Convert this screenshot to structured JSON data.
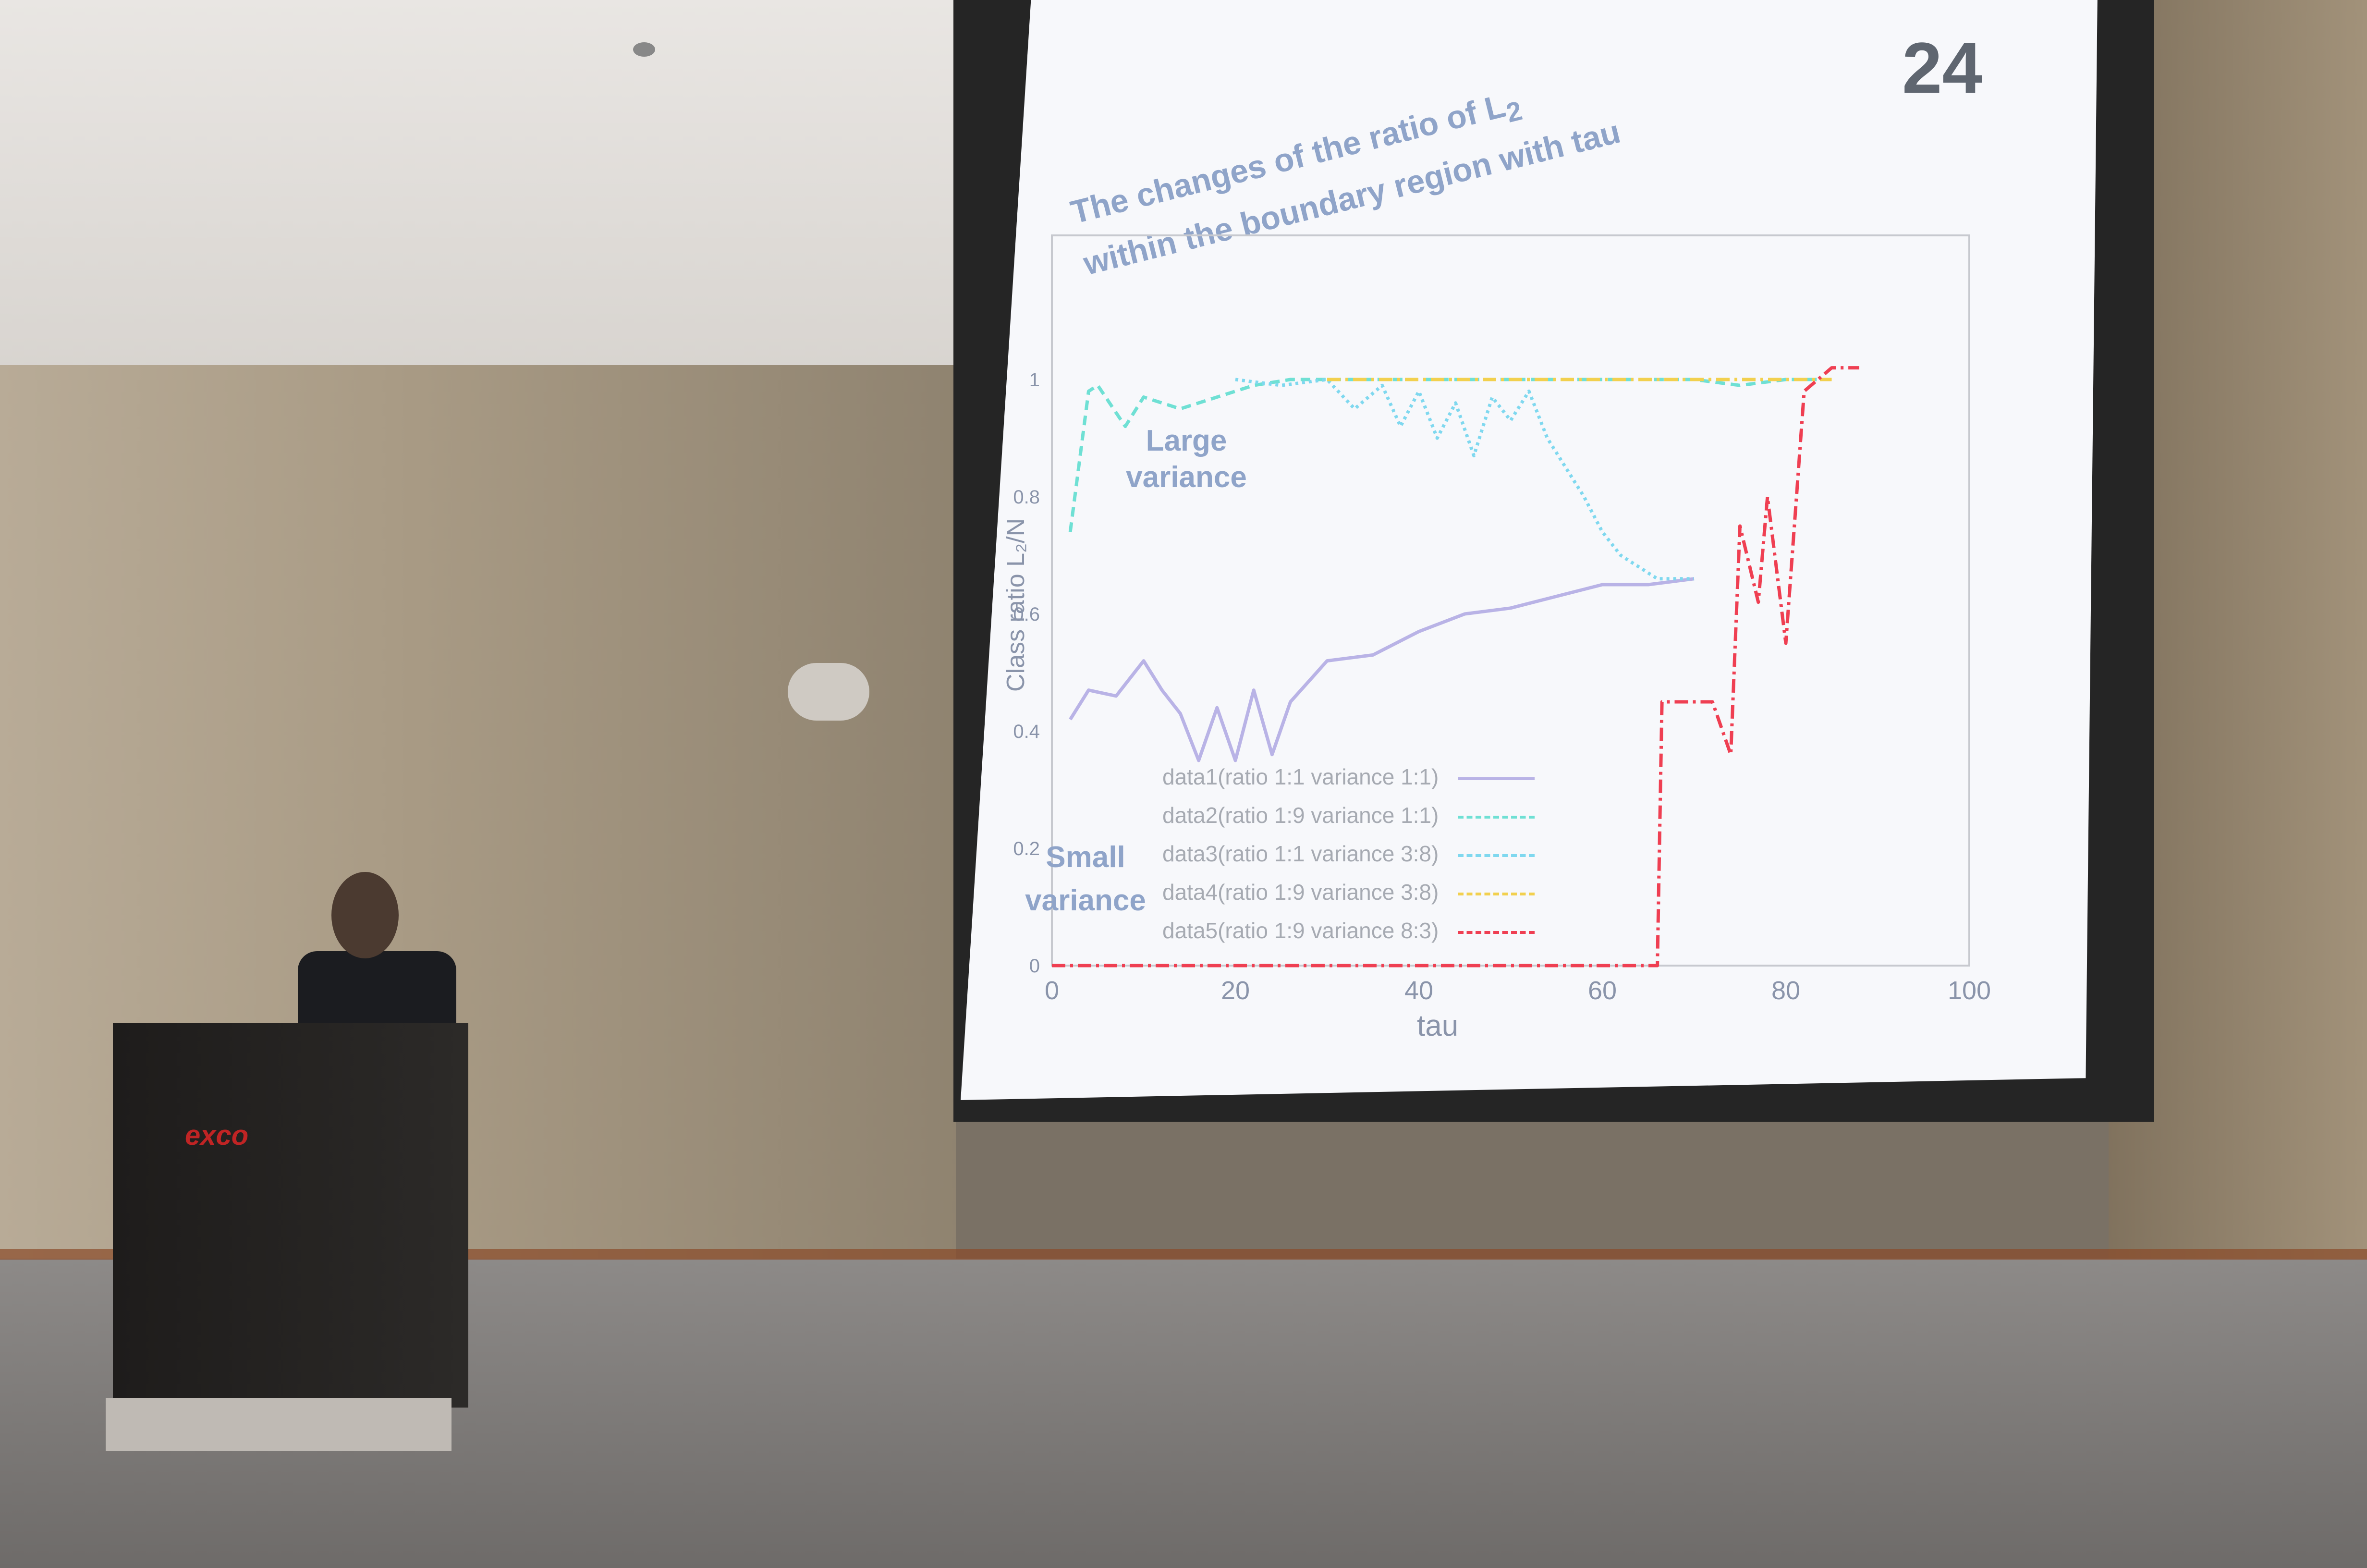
{
  "slide": {
    "number": "24",
    "title_line1": "The changes of the ratio of L",
    "title_sub": "2",
    "title_line2": "within the boundary region with tau",
    "annotations": {
      "large": "Large\nvariance",
      "small": "Small\nvariance"
    },
    "podium_logo": "exco"
  },
  "chart_data": {
    "type": "line",
    "xlabel": "tau",
    "ylabel": "Class ratio L₂/N",
    "xlim": [
      0,
      100
    ],
    "ylim": [
      0,
      1
    ],
    "x_ticks": [
      "0",
      "20",
      "40",
      "60",
      "80",
      "100"
    ],
    "y_ticks": [
      "0",
      "0.2",
      "0.4",
      "0.6",
      "0.8",
      "1"
    ],
    "series": [
      {
        "name": "data1(ratio 1:1 variance 1:1)",
        "color": "#b9b3e6",
        "dash": "",
        "x": [
          2,
          4,
          7,
          10,
          12,
          14,
          16,
          18,
          20,
          22,
          24,
          26,
          30,
          35,
          40,
          45,
          50,
          55,
          60,
          65,
          70
        ],
        "y": [
          0.42,
          0.47,
          0.46,
          0.52,
          0.47,
          0.43,
          0.35,
          0.44,
          0.35,
          0.47,
          0.36,
          0.45,
          0.52,
          0.53,
          0.57,
          0.6,
          0.61,
          0.63,
          0.65,
          0.65,
          0.66
        ]
      },
      {
        "name": "data2(ratio 1:9 variance 1:1)",
        "color": "#6fe0d4",
        "dash": "20,12",
        "x": [
          2,
          4,
          5,
          8,
          10,
          14,
          18,
          22,
          26,
          30,
          40,
          50,
          60,
          70,
          75,
          80,
          82,
          85
        ],
        "y": [
          0.74,
          0.98,
          0.99,
          0.92,
          0.97,
          0.95,
          0.97,
          0.99,
          1.0,
          1.0,
          1.0,
          1.0,
          1.0,
          1.0,
          0.99,
          1.0,
          1.0,
          1.0
        ]
      },
      {
        "name": "data3(ratio 1:1 variance 3:8)",
        "color": "#7fd8ef",
        "dash": "6,8",
        "x": [
          20,
          25,
          30,
          33,
          36,
          38,
          40,
          42,
          44,
          46,
          48,
          50,
          52,
          54,
          56,
          58,
          60,
          62,
          64,
          66,
          70
        ],
        "y": [
          1.0,
          0.99,
          1.0,
          0.95,
          0.99,
          0.92,
          0.98,
          0.9,
          0.96,
          0.87,
          0.97,
          0.93,
          0.98,
          0.9,
          0.85,
          0.8,
          0.74,
          0.7,
          0.68,
          0.66,
          0.66
        ]
      },
      {
        "name": "data4(ratio 1:9 variance 3:8)",
        "color": "#f2d04e",
        "dash": "28,10,6,10",
        "x": [
          30,
          40,
          50,
          60,
          70,
          80,
          85
        ],
        "y": [
          1.0,
          1.0,
          1.0,
          1.0,
          1.0,
          1.0,
          1.0
        ]
      },
      {
        "name": "data5(ratio 1:9 variance 8:3)",
        "color": "#ef3f52",
        "dash": "28,10,6,10",
        "x": [
          0,
          20,
          40,
          60,
          66,
          66.5,
          72,
          74,
          75,
          77,
          78,
          80,
          82,
          85,
          88
        ],
        "y": [
          0,
          0,
          0,
          0,
          0,
          0.45,
          0.45,
          0.36,
          0.75,
          0.62,
          0.8,
          0.55,
          0.98,
          1.02,
          1.02
        ]
      }
    ]
  }
}
